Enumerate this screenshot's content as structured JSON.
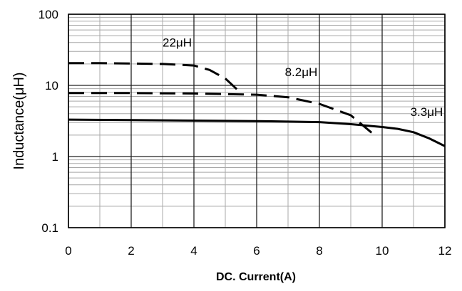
{
  "chart_data": {
    "type": "line",
    "title": "",
    "xlabel": "DC. Current(A)",
    "ylabel": "Inductance(μH)",
    "xlim": [
      0,
      12
    ],
    "ylim": [
      0.1,
      100
    ],
    "yscale": "log",
    "grid": true,
    "x_ticks": [
      "0",
      "2",
      "4",
      "6",
      "8",
      "10",
      "12"
    ],
    "y_ticks": [
      "0.1",
      "1",
      "10",
      "100"
    ],
    "series": [
      {
        "name": "22μH",
        "style": "dashed",
        "color": "#000000",
        "points": [
          [
            0,
            20.5
          ],
          [
            1,
            20.5
          ],
          [
            2,
            20.3
          ],
          [
            3,
            20
          ],
          [
            4,
            19
          ],
          [
            4.5,
            16.5
          ],
          [
            5,
            12.5
          ],
          [
            5.5,
            7.8
          ]
        ]
      },
      {
        "name": "8.2μH",
        "style": "dashed",
        "color": "#000000",
        "points": [
          [
            0,
            7.8
          ],
          [
            2,
            7.8
          ],
          [
            4,
            7.7
          ],
          [
            6,
            7.4
          ],
          [
            7,
            6.8
          ],
          [
            8,
            5.5
          ],
          [
            9,
            3.8
          ],
          [
            9.7,
            2.1
          ]
        ]
      },
      {
        "name": "3.3μH",
        "style": "solid",
        "color": "#000000",
        "points": [
          [
            0,
            3.3
          ],
          [
            2,
            3.25
          ],
          [
            4,
            3.2
          ],
          [
            6,
            3.15
          ],
          [
            8,
            3.05
          ],
          [
            9,
            2.85
          ],
          [
            10,
            2.6
          ],
          [
            10.5,
            2.45
          ],
          [
            11,
            2.2
          ],
          [
            11.5,
            1.8
          ],
          [
            12,
            1.4
          ]
        ]
      }
    ],
    "annotations": [
      {
        "text": "22μH",
        "x": 3.0,
        "y": 35
      },
      {
        "text": "8.2μH",
        "x": 6.9,
        "y": 13.5
      },
      {
        "text": "3.3μH",
        "x": 10.9,
        "y": 3.7
      }
    ]
  }
}
